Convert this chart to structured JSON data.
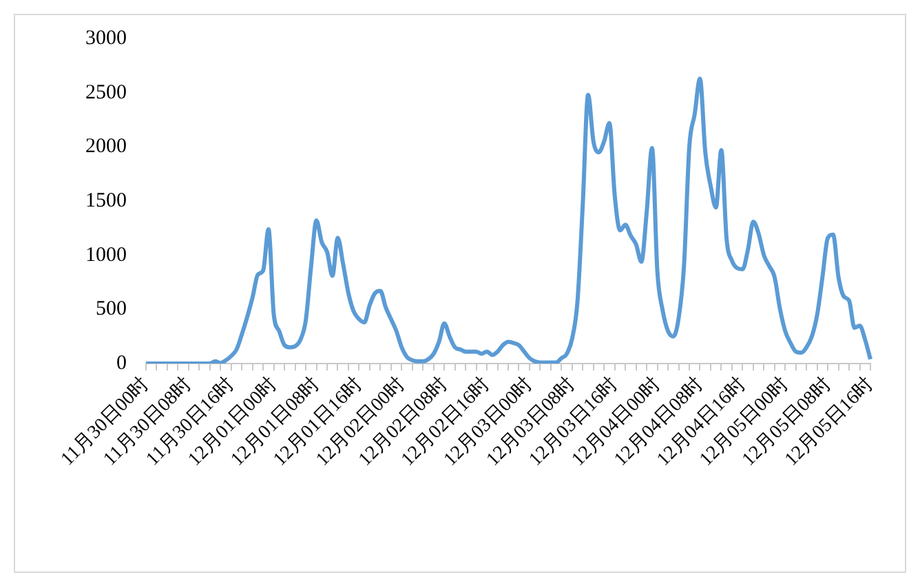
{
  "chart_data": {
    "type": "line",
    "color": "#5b9bd5",
    "categories": [
      "11月30日00时",
      null,
      null,
      null,
      null,
      null,
      null,
      null,
      "11月30日08时",
      null,
      null,
      null,
      null,
      null,
      null,
      null,
      "11月30日16时",
      null,
      null,
      null,
      null,
      null,
      null,
      null,
      "12月01日00时",
      null,
      null,
      null,
      null,
      null,
      null,
      null,
      "12月01日08时",
      null,
      null,
      null,
      null,
      null,
      null,
      null,
      "12月01日16时",
      null,
      null,
      null,
      null,
      null,
      null,
      null,
      "12月02日00时",
      null,
      null,
      null,
      null,
      null,
      null,
      null,
      "12月02日08时",
      null,
      null,
      null,
      null,
      null,
      null,
      null,
      "12月02日16时",
      null,
      null,
      null,
      null,
      null,
      null,
      null,
      "12月03日00时",
      null,
      null,
      null,
      null,
      null,
      null,
      null,
      "12月03日08时",
      null,
      null,
      null,
      null,
      null,
      null,
      null,
      "12月03日16时",
      null,
      null,
      null,
      null,
      null,
      null,
      null,
      "12月04日00时",
      null,
      null,
      null,
      null,
      null,
      null,
      null,
      "12月04日08时",
      null,
      null,
      null,
      null,
      null,
      null,
      null,
      "12月04日16时",
      null,
      null,
      null,
      null,
      null,
      null,
      null,
      "12月05日00时",
      null,
      null,
      null,
      null,
      null,
      null,
      null,
      "12月05日08时",
      null,
      null,
      null,
      null,
      null,
      null,
      null,
      "12月05日16时"
    ],
    "values": [
      0,
      0,
      0,
      0,
      0,
      0,
      0,
      0,
      0,
      0,
      0,
      0,
      0,
      20,
      5,
      30,
      70,
      130,
      270,
      430,
      610,
      820,
      860,
      1240,
      450,
      300,
      170,
      150,
      160,
      220,
      400,
      900,
      1320,
      1120,
      1030,
      810,
      1160,
      920,
      650,
      480,
      410,
      380,
      540,
      650,
      670,
      520,
      410,
      300,
      150,
      60,
      30,
      20,
      20,
      40,
      90,
      200,
      370,
      250,
      150,
      130,
      110,
      110,
      110,
      90,
      110,
      80,
      110,
      170,
      200,
      190,
      170,
      110,
      50,
      20,
      10,
      10,
      10,
      10,
      50,
      90,
      230,
      570,
      1470,
      2480,
      2050,
      1950,
      2050,
      2220,
      1550,
      1230,
      1280,
      1180,
      1100,
      940,
      1400,
      1990,
      850,
      490,
      300,
      250,
      420,
      900,
      2000,
      2300,
      2630,
      1950,
      1640,
      1440,
      1970,
      1150,
      950,
      880,
      870,
      1050,
      1310,
      1200,
      1000,
      900,
      800,
      510,
      300,
      190,
      110,
      100,
      150,
      250,
      450,
      800,
      1160,
      1190,
      800,
      620,
      580,
      330,
      350,
      220,
      40
    ],
    "ylim": [
      0,
      3000
    ],
    "yticks": [
      0,
      500,
      1000,
      1500,
      2000,
      2500,
      3000
    ]
  }
}
